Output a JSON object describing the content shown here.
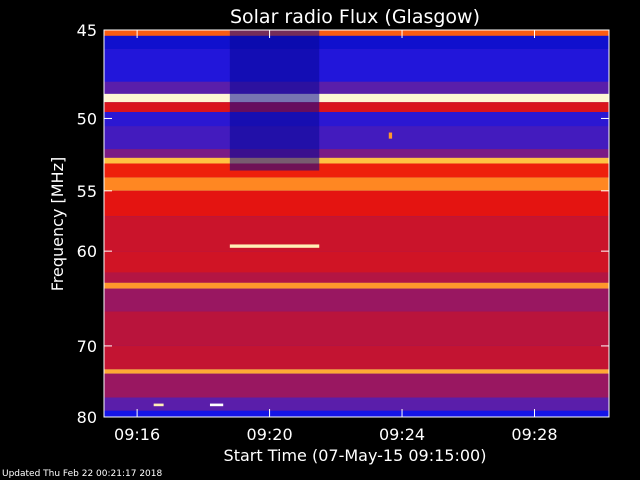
{
  "chart_data": {
    "type": "heatmap",
    "title": "Solar radio Flux (Glasgow)",
    "xlabel": "Start Time (07-May-15 09:15:00)",
    "ylabel": "Frequency [MHz]",
    "x_ticks": [
      "09:16",
      "09:20",
      "09:24",
      "09:28"
    ],
    "x_tick_minutes": [
      16,
      20,
      24,
      28
    ],
    "xlim_minutes": [
      15.0,
      30.25
    ],
    "y_ticks": [
      45,
      50,
      55,
      60,
      70,
      80
    ],
    "ylim": [
      45,
      80
    ],
    "colormap": "blue-red-yellow-white",
    "bands": [
      {
        "f_from": 45.0,
        "f_to": 45.3,
        "level": 0.72
      },
      {
        "f_from": 45.3,
        "f_to": 46.0,
        "level": 0.12
      },
      {
        "f_from": 46.0,
        "f_to": 47.8,
        "level": 0.18
      },
      {
        "f_from": 47.8,
        "f_to": 48.5,
        "level": 0.3
      },
      {
        "f_from": 48.5,
        "f_to": 49.0,
        "level": 0.97
      },
      {
        "f_from": 49.0,
        "f_to": 49.6,
        "level": 0.55
      },
      {
        "f_from": 49.6,
        "f_to": 50.5,
        "level": 0.2
      },
      {
        "f_from": 50.5,
        "f_to": 52.0,
        "level": 0.25
      },
      {
        "f_from": 52.0,
        "f_to": 52.6,
        "level": 0.35
      },
      {
        "f_from": 52.6,
        "f_to": 53.0,
        "level": 0.85
      },
      {
        "f_from": 53.0,
        "f_to": 54.0,
        "level": 0.62
      },
      {
        "f_from": 54.0,
        "f_to": 55.0,
        "level": 0.78
      },
      {
        "f_from": 55.0,
        "f_to": 57.0,
        "level": 0.58
      },
      {
        "f_from": 57.0,
        "f_to": 60.0,
        "level": 0.5
      },
      {
        "f_from": 60.0,
        "f_to": 62.0,
        "level": 0.52
      },
      {
        "f_from": 62.0,
        "f_to": 63.0,
        "level": 0.44
      },
      {
        "f_from": 63.0,
        "f_to": 63.6,
        "level": 0.8
      },
      {
        "f_from": 63.6,
        "f_to": 66.0,
        "level": 0.4
      },
      {
        "f_from": 66.0,
        "f_to": 70.0,
        "level": 0.45
      },
      {
        "f_from": 70.0,
        "f_to": 73.0,
        "level": 0.48
      },
      {
        "f_from": 73.0,
        "f_to": 73.6,
        "level": 0.82
      },
      {
        "f_from": 73.6,
        "f_to": 77.0,
        "level": 0.4
      },
      {
        "f_from": 77.0,
        "f_to": 79.0,
        "level": 0.3
      },
      {
        "f_from": 79.0,
        "f_to": 80.0,
        "level": 0.15
      }
    ],
    "features": [
      {
        "label": "noise-burst",
        "t_from": 18.8,
        "t_to": 21.5,
        "f_from": 45.0,
        "f_to": 53.5,
        "level": 0.05
      },
      {
        "label": "narrowband-line",
        "t_from": 18.8,
        "t_to": 21.5,
        "f_from": 59.4,
        "f_to": 59.7,
        "level": 0.95
      },
      {
        "label": "spot",
        "t_from": 23.6,
        "t_to": 23.7,
        "f_from": 50.9,
        "f_to": 51.3,
        "level": 0.8
      },
      {
        "label": "spot",
        "t_from": 16.5,
        "t_to": 16.8,
        "f_from": 77.9,
        "f_to": 78.3,
        "level": 0.95
      },
      {
        "label": "spot",
        "t_from": 18.2,
        "t_to": 18.6,
        "f_from": 77.9,
        "f_to": 78.3,
        "level": 1.0
      }
    ]
  },
  "footer": {
    "updated": "Updated Thu Feb 22 00:21:17 2018"
  }
}
